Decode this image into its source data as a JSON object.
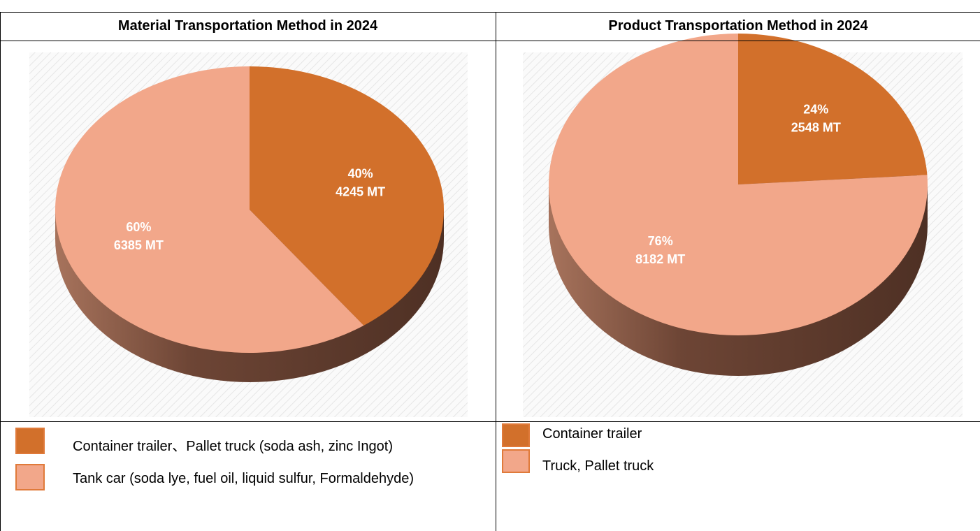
{
  "chart_data": [
    {
      "type": "pie",
      "title": "Material Transportation Method in 2024",
      "categories": [
        "Container trailer、Pallet truck (soda ash, zinc Ingot)",
        "Tank car (soda lye, fuel oil, liquid sulfur, Formaldehyde)"
      ],
      "values": [
        40,
        60
      ],
      "value_labels": [
        "40%",
        "60%"
      ],
      "amount_labels": [
        "4245 MT",
        "6385 MT"
      ],
      "colors": [
        "#d2702b",
        "#f2a78a"
      ]
    },
    {
      "type": "pie",
      "title": "Product Transportation Method in 2024",
      "categories": [
        "Container trailer",
        "Truck, Pallet truck"
      ],
      "values": [
        24,
        76
      ],
      "value_labels": [
        "24%",
        "76%"
      ],
      "amount_labels": [
        "2548 MT",
        "8182 MT"
      ],
      "colors": [
        "#d2702b",
        "#f2a78a"
      ]
    }
  ]
}
